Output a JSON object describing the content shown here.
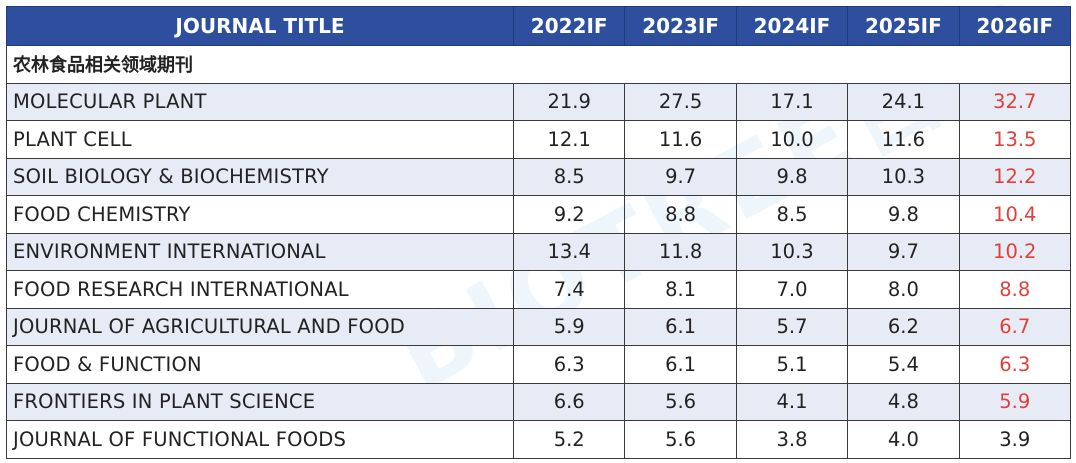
{
  "chart_data": {
    "type": "table",
    "columns": [
      "JOURNAL TITLE",
      "2022IF",
      "2023IF",
      "2024IF",
      "2025IF",
      "2026IF"
    ],
    "section_label": "农林食品相关领域期刊",
    "rows": [
      {
        "name": "MOLECULAR PLANT",
        "values": [
          "21.9",
          "27.5",
          "17.1",
          "24.1",
          "32.7"
        ],
        "highlight_last": true
      },
      {
        "name": "PLANT CELL",
        "values": [
          "12.1",
          "11.6",
          "10.0",
          "11.6",
          "13.5"
        ],
        "highlight_last": true
      },
      {
        "name": "SOIL BIOLOGY & BIOCHEMISTRY",
        "values": [
          "8.5",
          "9.7",
          "9.8",
          "10.3",
          "12.2"
        ],
        "highlight_last": true
      },
      {
        "name": "FOOD CHEMISTRY",
        "values": [
          "9.2",
          "8.8",
          "8.5",
          "9.8",
          "10.4"
        ],
        "highlight_last": true
      },
      {
        "name": "ENVIRONMENT INTERNATIONAL",
        "values": [
          "13.4",
          "11.8",
          "10.3",
          "9.7",
          "10.2"
        ],
        "highlight_last": true
      },
      {
        "name": "FOOD RESEARCH INTERNATIONAL",
        "values": [
          "7.4",
          "8.1",
          "7.0",
          "8.0",
          "8.8"
        ],
        "highlight_last": true
      },
      {
        "name": "JOURNAL OF AGRICULTURAL AND FOOD",
        "values": [
          "5.9",
          "6.1",
          "5.7",
          "6.2",
          "6.7"
        ],
        "highlight_last": true
      },
      {
        "name": "FOOD & FUNCTION",
        "values": [
          "6.3",
          "6.1",
          "5.1",
          "5.4",
          "6.3"
        ],
        "highlight_last": true
      },
      {
        "name": "FRONTIERS IN PLANT SCIENCE",
        "values": [
          "6.6",
          "5.6",
          "4.1",
          "4.8",
          "5.9"
        ],
        "highlight_last": true
      },
      {
        "name": "JOURNAL OF FUNCTIONAL FOODS",
        "values": [
          "5.2",
          "5.6",
          "3.8",
          "4.0",
          "3.9"
        ],
        "highlight_last": false
      }
    ]
  },
  "colors": {
    "header_bg": "#2d4f9e",
    "alt_row_bg": "#e7ebf6",
    "highlight_text": "#e0403a"
  },
  "watermark": "BIOTREE百趣"
}
